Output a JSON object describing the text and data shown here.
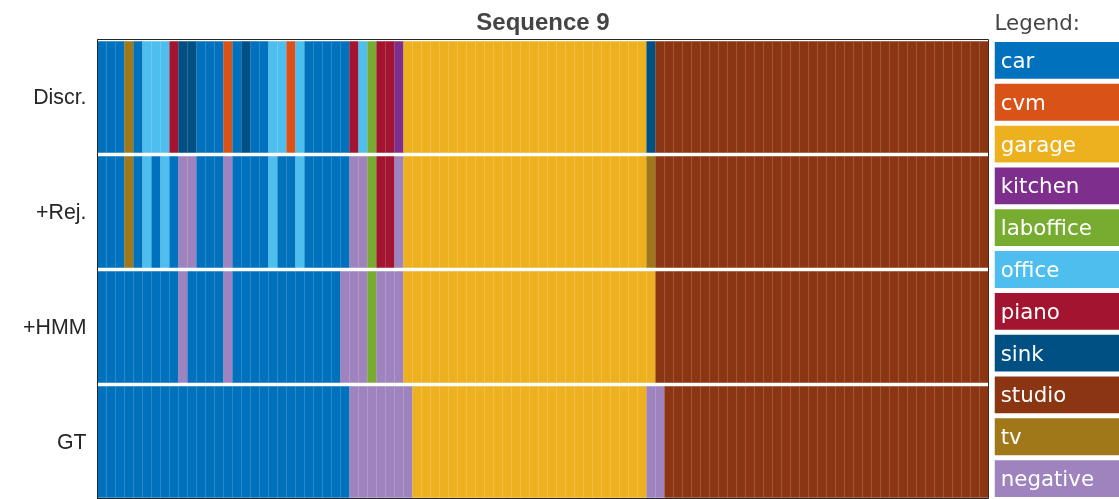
{
  "chart_data": {
    "type": "heatmap",
    "title": "Sequence 9",
    "clabel": "Legend:",
    "categories": [
      null,
      null,
      null,
      null,
      null,
      null,
      null,
      null,
      null,
      null,
      null,
      null,
      null,
      null,
      null,
      null,
      null,
      null,
      null,
      null,
      null,
      null,
      null,
      null,
      null,
      null,
      null,
      null,
      null,
      null,
      null,
      null,
      null,
      null,
      null,
      null,
      null,
      null,
      null,
      null,
      null,
      null,
      null,
      null,
      null,
      null,
      null,
      null,
      null,
      null,
      null,
      null,
      null,
      null,
      null,
      null,
      null,
      null,
      null,
      null,
      null,
      null,
      null,
      null,
      null,
      null,
      null,
      null,
      null,
      null,
      null,
      null,
      null,
      null,
      null,
      null,
      null,
      null,
      null,
      null,
      null,
      null,
      null,
      null,
      null,
      null,
      null,
      null,
      null,
      null,
      null,
      null,
      null,
      null,
      null,
      null,
      null,
      null,
      null
    ],
    "y_categories": [
      "Discr.",
      "+Rej.",
      "+HMM",
      "GT"
    ],
    "cells": [
      [
        1,
        1,
        1,
        10,
        1,
        6,
        6,
        6,
        7,
        8,
        8,
        1,
        1,
        1,
        2,
        1,
        8,
        1,
        1,
        6,
        6,
        2,
        6,
        1,
        1,
        1,
        1,
        1,
        7,
        6,
        5,
        7,
        7,
        4,
        3,
        3,
        3,
        3,
        3,
        3,
        3,
        3,
        3,
        3,
        3,
        3,
        3,
        3,
        3,
        3,
        3,
        3,
        3,
        3,
        3,
        3,
        3,
        3,
        3,
        3,
        3,
        8,
        9,
        9,
        9,
        9,
        9,
        9,
        9,
        9,
        9,
        9,
        9,
        9,
        9,
        9,
        9,
        9,
        9,
        9,
        9,
        9,
        9,
        9,
        9,
        9,
        9,
        9,
        9,
        9,
        9,
        9,
        9,
        9,
        9,
        9,
        9,
        9,
        9
      ],
      [
        1,
        1,
        1,
        10,
        1,
        6,
        1,
        6,
        1,
        11,
        11,
        1,
        1,
        1,
        11,
        1,
        1,
        1,
        1,
        6,
        1,
        1,
        6,
        1,
        1,
        1,
        1,
        1,
        11,
        11,
        5,
        7,
        7,
        11,
        3,
        3,
        3,
        3,
        3,
        3,
        3,
        3,
        3,
        3,
        3,
        3,
        3,
        3,
        3,
        3,
        3,
        3,
        3,
        3,
        3,
        3,
        3,
        3,
        3,
        3,
        3,
        10,
        9,
        9,
        9,
        9,
        9,
        9,
        9,
        9,
        9,
        9,
        9,
        9,
        9,
        9,
        9,
        9,
        9,
        9,
        9,
        9,
        9,
        9,
        9,
        9,
        9,
        9,
        9,
        9,
        9,
        9,
        9,
        9,
        9,
        9,
        9,
        9,
        9
      ],
      [
        1,
        1,
        1,
        1,
        1,
        1,
        1,
        1,
        1,
        11,
        1,
        1,
        1,
        1,
        11,
        1,
        1,
        1,
        1,
        1,
        1,
        1,
        1,
        1,
        1,
        1,
        1,
        11,
        11,
        11,
        5,
        11,
        11,
        11,
        3,
        3,
        3,
        3,
        3,
        3,
        3,
        3,
        3,
        3,
        3,
        3,
        3,
        3,
        3,
        3,
        3,
        3,
        3,
        3,
        3,
        3,
        3,
        3,
        3,
        3,
        3,
        3,
        9,
        9,
        9,
        9,
        9,
        9,
        9,
        9,
        9,
        9,
        9,
        9,
        9,
        9,
        9,
        9,
        9,
        9,
        9,
        9,
        9,
        9,
        9,
        9,
        9,
        9,
        9,
        9,
        9,
        9,
        9,
        9,
        9,
        9,
        9,
        9,
        9
      ],
      [
        1,
        1,
        1,
        1,
        1,
        1,
        1,
        1,
        1,
        1,
        1,
        1,
        1,
        1,
        1,
        1,
        1,
        1,
        1,
        1,
        1,
        1,
        1,
        1,
        1,
        1,
        1,
        1,
        11,
        11,
        11,
        11,
        11,
        11,
        11,
        3,
        3,
        3,
        3,
        3,
        3,
        3,
        3,
        3,
        3,
        3,
        3,
        3,
        3,
        3,
        3,
        3,
        3,
        3,
        3,
        3,
        3,
        3,
        3,
        3,
        3,
        11,
        11,
        9,
        9,
        9,
        9,
        9,
        9,
        9,
        9,
        9,
        9,
        9,
        9,
        9,
        9,
        9,
        9,
        9,
        9,
        9,
        9,
        9,
        9,
        9,
        9,
        9,
        9,
        9,
        9,
        9,
        9,
        9,
        9,
        9,
        9,
        9,
        9
      ]
    ],
    "clim": [
      0.5,
      11.5
    ],
    "cticks": [
      {
        "value": 1,
        "label": "car"
      },
      {
        "value": 2,
        "label": "cvm"
      },
      {
        "value": 3,
        "label": "garage"
      },
      {
        "value": 4,
        "label": "kitchen"
      },
      {
        "value": 5,
        "label": "laboffice"
      },
      {
        "value": 6,
        "label": "office"
      },
      {
        "value": 7,
        "label": "piano"
      },
      {
        "value": 8,
        "label": "sink"
      },
      {
        "value": 9,
        "label": "studio"
      },
      {
        "value": 10,
        "label": "tv"
      },
      {
        "value": 11,
        "label": "negative"
      }
    ],
    "colors": [
      "#0072bd",
      "#d95319",
      "#edb120",
      "#7e2f8e",
      "#77ac30",
      "#4dbeee",
      "#a2142f",
      "#005083",
      "#8b3512",
      "#a0781a",
      "#9e83be"
    ],
    "tick_labels": "y"
  }
}
